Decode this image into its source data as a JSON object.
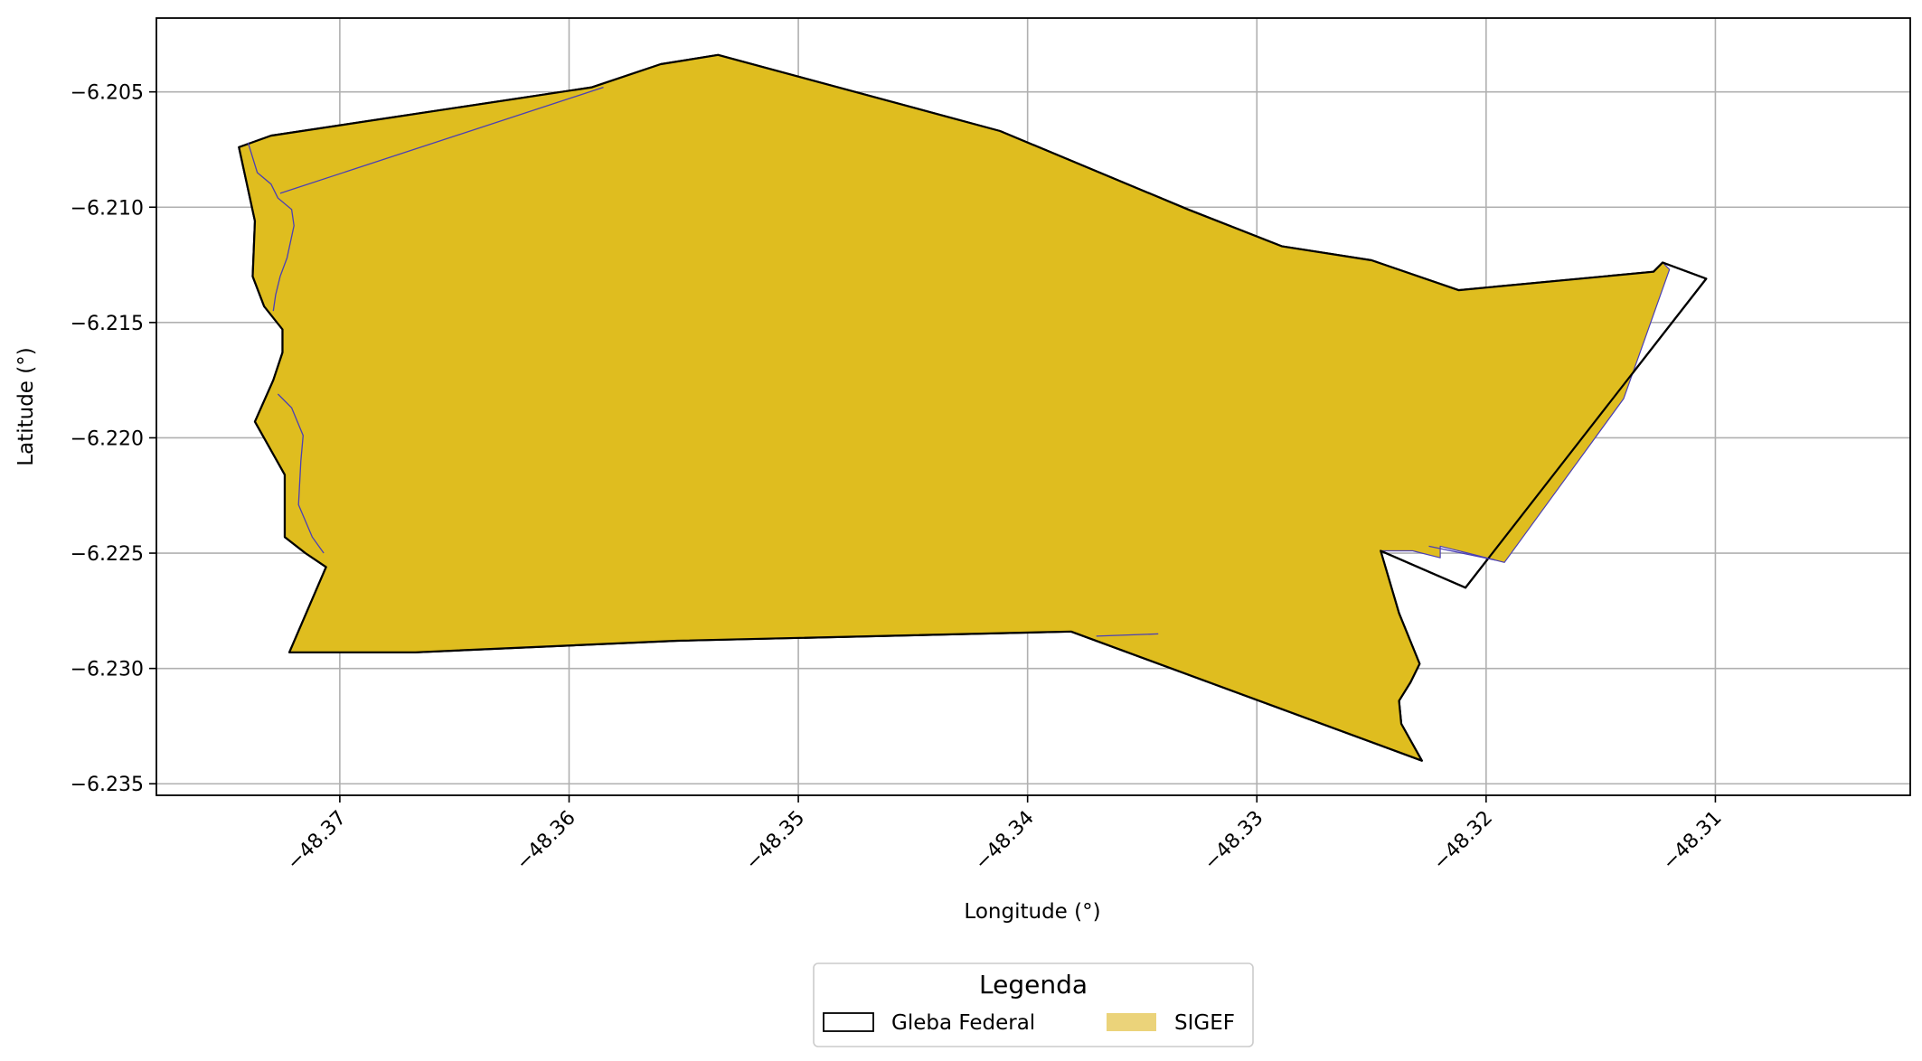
{
  "chart_data": {
    "type": "map",
    "xlabel": "Longitude (°)",
    "ylabel": "Latitude (°)",
    "xlim": [
      -48.378,
      -48.3015
    ],
    "ylim": [
      -6.2355,
      -6.2018
    ],
    "x_ticks": [
      -48.37,
      -48.36,
      -48.35,
      -48.34,
      -48.33,
      -48.32,
      -48.31
    ],
    "x_tick_labels": [
      "−48.37",
      "−48.36",
      "−48.35",
      "−48.34",
      "−48.33",
      "−48.32",
      "−48.31"
    ],
    "y_ticks": [
      -6.205,
      -6.21,
      -6.215,
      -6.22,
      -6.225,
      -6.23,
      -6.235
    ],
    "y_tick_labels": [
      "−6.205",
      "−6.210",
      "−6.215",
      "−6.220",
      "−6.225",
      "−6.230",
      "−6.235"
    ],
    "grid": true,
    "colors": {
      "gleba_edge": "#000000",
      "sigef_fill": "#dfbd1f",
      "sigef_edge": "#4a3fb5",
      "grid": "#b0b0b0",
      "legend_sigef_swatch": "#ebd37a"
    },
    "legend": {
      "title": "Legenda",
      "position": "bottom-center",
      "items": [
        {
          "label": "Gleba Federal",
          "style": "outline"
        },
        {
          "label": "SIGEF",
          "style": "filled"
        }
      ]
    },
    "layers": [
      {
        "name": "Gleba Federal",
        "style": "outline",
        "coordinates": [
          [
            -48.3744,
            -6.2074
          ],
          [
            -48.373,
            -6.2069
          ],
          [
            -48.359,
            -6.2048
          ],
          [
            -48.356,
            -6.2038
          ],
          [
            -48.3535,
            -6.2034
          ],
          [
            -48.3412,
            -6.2067
          ],
          [
            -48.333,
            -6.2101
          ],
          [
            -48.3289,
            -6.2117
          ],
          [
            -48.325,
            -6.2123
          ],
          [
            -48.3212,
            -6.2136
          ],
          [
            -48.3127,
            -6.2128
          ],
          [
            -48.3123,
            -6.2124
          ],
          [
            -48.3104,
            -6.2131
          ],
          [
            -48.3209,
            -6.2265
          ],
          [
            -48.3246,
            -6.2249
          ],
          [
            -48.3238,
            -6.2276
          ],
          [
            -48.3229,
            -6.2298
          ],
          [
            -48.3233,
            -6.2306
          ],
          [
            -48.3238,
            -6.2314
          ],
          [
            -48.3237,
            -6.2324
          ],
          [
            -48.3228,
            -6.234
          ],
          [
            -48.3381,
            -6.2284
          ],
          [
            -48.3553,
            -6.2288
          ],
          [
            -48.3667,
            -6.2293
          ],
          [
            -48.3722,
            -6.2293
          ],
          [
            -48.3706,
            -6.2256
          ],
          [
            -48.3715,
            -6.225
          ],
          [
            -48.3724,
            -6.2243
          ],
          [
            -48.3724,
            -6.2216
          ],
          [
            -48.3737,
            -6.2193
          ],
          [
            -48.3729,
            -6.2175
          ],
          [
            -48.3725,
            -6.2163
          ],
          [
            -48.3725,
            -6.2153
          ],
          [
            -48.3733,
            -6.2143
          ],
          [
            -48.3738,
            -6.213
          ],
          [
            -48.3737,
            -6.2106
          ]
        ]
      },
      {
        "name": "SIGEF",
        "style": "filled",
        "coordinates": [
          [
            -48.3744,
            -6.2074
          ],
          [
            -48.373,
            -6.2069
          ],
          [
            -48.359,
            -6.2048
          ],
          [
            -48.356,
            -6.2038
          ],
          [
            -48.3535,
            -6.2034
          ],
          [
            -48.3412,
            -6.2067
          ],
          [
            -48.333,
            -6.2101
          ],
          [
            -48.3289,
            -6.2117
          ],
          [
            -48.325,
            -6.2123
          ],
          [
            -48.3212,
            -6.2136
          ],
          [
            -48.3127,
            -6.2128
          ],
          [
            -48.3123,
            -6.2124
          ],
          [
            -48.312,
            -6.2127
          ],
          [
            -48.314,
            -6.2183
          ],
          [
            -48.3192,
            -6.2254
          ],
          [
            -48.3208,
            -6.225
          ],
          [
            -48.322,
            -6.2247
          ],
          [
            -48.322,
            -6.2252
          ],
          [
            -48.3232,
            -6.2249
          ],
          [
            -48.3246,
            -6.2249
          ],
          [
            -48.3238,
            -6.2276
          ],
          [
            -48.3229,
            -6.2298
          ],
          [
            -48.3233,
            -6.2306
          ],
          [
            -48.3238,
            -6.2314
          ],
          [
            -48.3237,
            -6.2324
          ],
          [
            -48.3228,
            -6.234
          ],
          [
            -48.3381,
            -6.2284
          ],
          [
            -48.3553,
            -6.2288
          ],
          [
            -48.3667,
            -6.2293
          ],
          [
            -48.3722,
            -6.2293
          ],
          [
            -48.3706,
            -6.2256
          ],
          [
            -48.3715,
            -6.225
          ],
          [
            -48.3724,
            -6.2243
          ],
          [
            -48.3724,
            -6.2216
          ],
          [
            -48.3737,
            -6.2193
          ],
          [
            -48.3729,
            -6.2175
          ],
          [
            -48.3725,
            -6.2163
          ],
          [
            -48.3725,
            -6.2153
          ],
          [
            -48.3733,
            -6.2143
          ],
          [
            -48.3738,
            -6.213
          ],
          [
            -48.3737,
            -6.2106
          ]
        ]
      }
    ],
    "inner_boundaries": [
      [
        [
          -48.374,
          -6.2072
        ],
        [
          -48.3736,
          -6.2085
        ],
        [
          -48.373,
          -6.209
        ],
        [
          -48.3727,
          -6.2096
        ],
        [
          -48.3721,
          -6.2101
        ],
        [
          -48.372,
          -6.2108
        ],
        [
          -48.3723,
          -6.2122
        ],
        [
          -48.3726,
          -6.213
        ],
        [
          -48.3728,
          -6.2138
        ],
        [
          -48.3729,
          -6.2145
        ]
      ],
      [
        [
          -48.3726,
          -6.2094
        ],
        [
          -48.3585,
          -6.2048
        ]
      ],
      [
        [
          -48.3727,
          -6.2181
        ],
        [
          -48.3721,
          -6.2187
        ],
        [
          -48.3716,
          -6.2199
        ],
        [
          -48.3717,
          -6.221
        ],
        [
          -48.3718,
          -6.2229
        ],
        [
          -48.3712,
          -6.2243
        ],
        [
          -48.3707,
          -6.225
        ]
      ],
      [
        [
          -48.337,
          -6.2286
        ],
        [
          -48.3343,
          -6.2285
        ]
      ],
      [
        [
          -48.3225,
          -6.2247
        ],
        [
          -48.3196,
          -6.2253
        ]
      ]
    ]
  }
}
